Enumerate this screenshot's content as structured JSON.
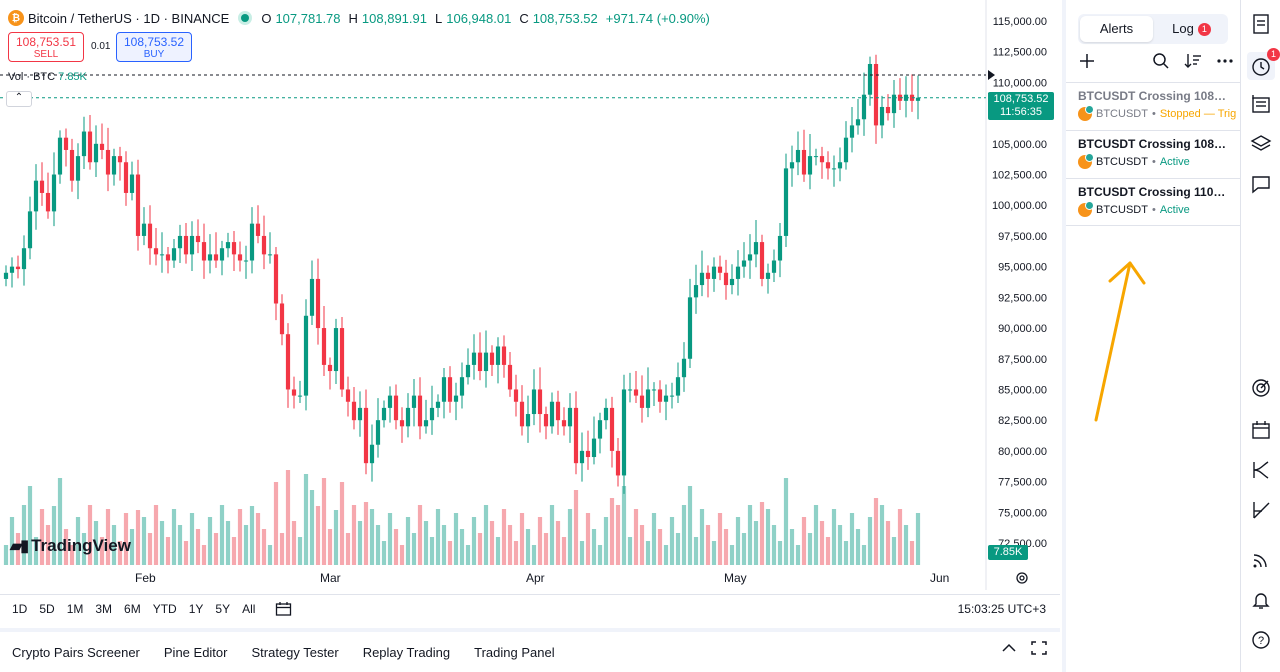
{
  "legend": {
    "title": "Bitcoin / TetherUS · 1D · BINANCE",
    "o_label": "O",
    "o": "107,781.78",
    "h_label": "H",
    "h": "108,891.91",
    "l_label": "L",
    "l": "106,948.01",
    "c_label": "C",
    "c": "108,753.52",
    "change": "+971.74 (+0.90%)"
  },
  "trade": {
    "sell_price": "108,753.51",
    "sell_label": "SELL",
    "spread": "0.01",
    "buy_price": "108,753.52",
    "buy_label": "BUY"
  },
  "volume": {
    "label": "Vol · BTC",
    "value": "7.85K"
  },
  "logo": "TradingView",
  "price_axis": [
    "115,000.00",
    "112,500.00",
    "110,000.00",
    "107,500.00",
    "105,000.00",
    "102,500.00",
    "100,000.00",
    "97,500.00",
    "95,000.00",
    "92,500.00",
    "90,000.00",
    "87,500.00",
    "85,000.00",
    "82,500.00",
    "80,000.00",
    "77,500.00",
    "75,000.00",
    "72,500.00"
  ],
  "last_price": {
    "price": "108,753.52",
    "countdown": "11:56:35"
  },
  "volume_tag": "7.85K",
  "months": [
    "Feb",
    "Mar",
    "Apr",
    "May",
    "Jun"
  ],
  "ranges": [
    "1D",
    "5D",
    "1M",
    "3M",
    "6M",
    "YTD",
    "1Y",
    "5Y",
    "All"
  ],
  "clock": "15:03:25 UTC+3",
  "bottom_tabs": [
    "Crypto Pairs Screener",
    "Pine Editor",
    "Strategy Tester",
    "Replay Trading",
    "Trading Panel"
  ],
  "panel": {
    "tab_alerts": "Alerts",
    "tab_log": "Log",
    "log_badge": "1",
    "alerts": [
      {
        "title": "BTCUSDT Crossing 108,7...",
        "symbol": "BTCUSDT",
        "status": "Stopped — Trig",
        "status_color": "#f7a600",
        "dim": true
      },
      {
        "title": "BTCUSDT Crossing 108,7...",
        "symbol": "BTCUSDT",
        "status": "Active",
        "status_color": "#089981",
        "dim": false
      },
      {
        "title": "BTCUSDT Crossing 110,6...",
        "symbol": "BTCUSDT",
        "status": "Active",
        "status_color": "#089981",
        "dim": false
      }
    ]
  },
  "toolbar_badge": "1",
  "colors": {
    "up": "#089981",
    "down": "#f23645",
    "vol_up": "#8fd1c7",
    "vol_down": "#f6a8ae",
    "accent": "#2962ff",
    "arrow": "#f7a600"
  },
  "chart_data": {
    "type": "candlestick",
    "symbol": "BTCUSDT",
    "interval": "1D",
    "ylim": [
      72500,
      115000
    ],
    "dashed_levels": [
      110600,
      108753.52
    ],
    "candles_close_approx": [
      94500,
      95000,
      94800,
      96500,
      99500,
      102000,
      101000,
      99500,
      102500,
      105500,
      104500,
      102000,
      104000,
      106000,
      103500,
      105000,
      104500,
      102500,
      104000,
      103500,
      101000,
      102500,
      97500,
      98500,
      96500,
      96000,
      96000,
      95500,
      96500,
      97500,
      96000,
      97500,
      97000,
      95500,
      96000,
      95500,
      96500,
      97000,
      96000,
      95500,
      95500,
      98500,
      97500,
      96000,
      96000,
      92000,
      89500,
      85000,
      84500,
      84500,
      91000,
      94000,
      90000,
      87000,
      86500,
      90000,
      85000,
      84000,
      82500,
      83500,
      79000,
      80500,
      82500,
      83500,
      84500,
      82500,
      82000,
      83500,
      84500,
      82000,
      82500,
      83500,
      84000,
      86000,
      84000,
      84500,
      86000,
      87000,
      88000,
      86500,
      88000,
      87000,
      88500,
      87000,
      85000,
      84000,
      82000,
      83000,
      85000,
      83000,
      82000,
      84000,
      82500,
      82000,
      83500,
      79000,
      80000,
      79500,
      81000,
      82500,
      83500,
      80000,
      78000,
      85000,
      85000,
      84500,
      83500,
      85000,
      85000,
      84000,
      84500,
      84500,
      86000,
      87500,
      92500,
      93500,
      94500,
      94000,
      95000,
      94500,
      93500,
      94000,
      95000,
      95500,
      96000,
      97000,
      94000,
      94500,
      95500,
      97500,
      103000,
      103500,
      104500,
      102500,
      104000,
      104000,
      103500,
      103000,
      103000,
      103500,
      105500,
      106500,
      107000,
      109000,
      111500,
      106500,
      108000,
      107500,
      109000,
      108500,
      109000,
      108500,
      108753
    ]
  }
}
